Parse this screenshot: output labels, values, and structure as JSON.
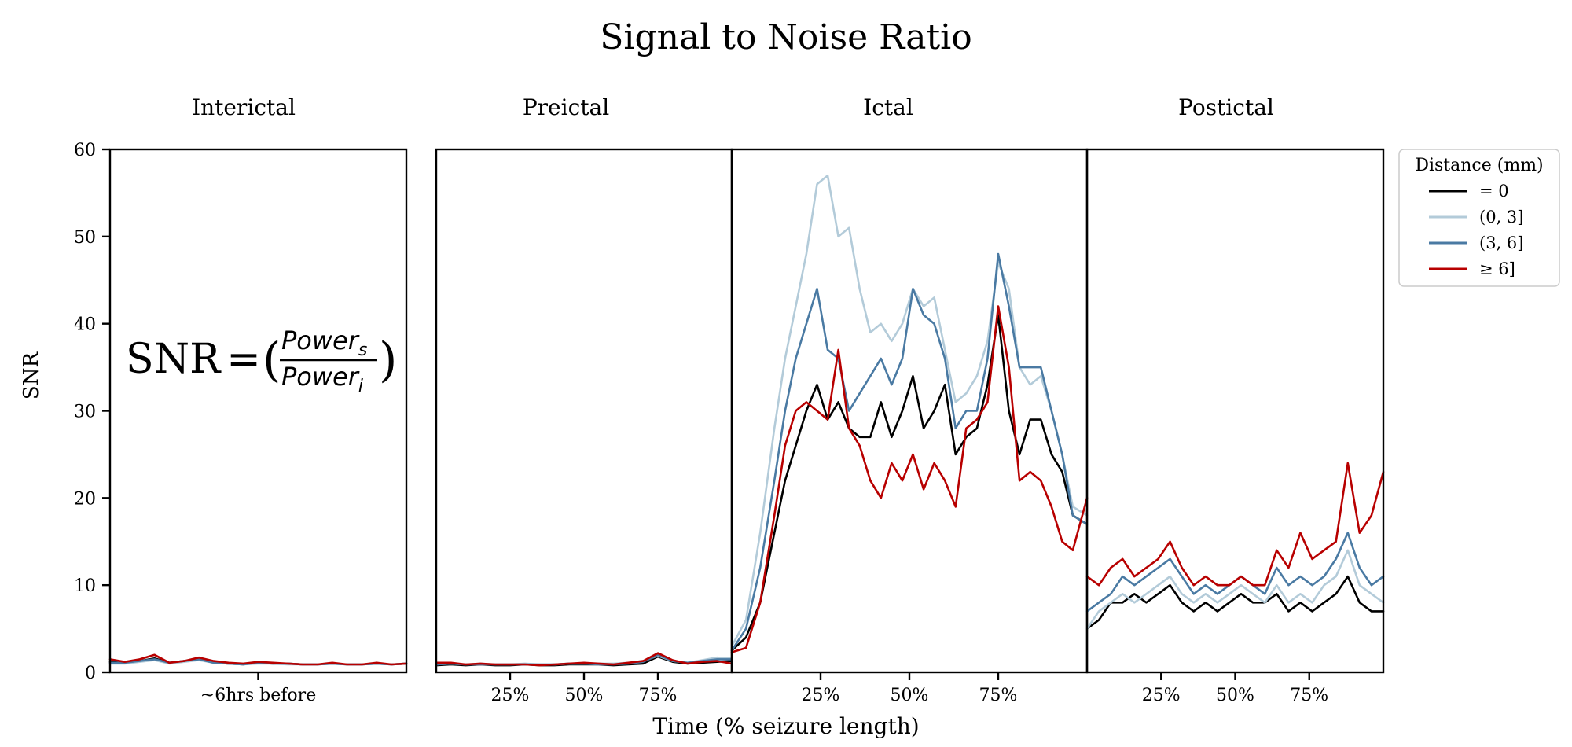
{
  "chart_data": {
    "type": "line",
    "title": "Signal to Noise Ratio",
    "ylabel": "SNR",
    "xlabel": "Time (% seizure length)",
    "ylim": [
      0,
      60
    ],
    "yticks": [
      0,
      10,
      20,
      30,
      40,
      50,
      60
    ],
    "grid": false,
    "legend": {
      "title": "Distance (mm)",
      "placement": "outside-right-top",
      "entries": [
        {
          "label": "= 0",
          "color": "#000000"
        },
        {
          "label": "(0, 3]",
          "color": "#b3cbd9"
        },
        {
          "label": "(3, 6]",
          "color": "#4a7aa3"
        },
        {
          "label": "≥ 6]",
          "color": "#b80000"
        }
      ]
    },
    "formula": {
      "lhs": "SNR",
      "eq": "=",
      "num": "Power",
      "num_sub": "s",
      "den": "Power",
      "den_sub": "i"
    },
    "panels": [
      {
        "title": "Interictal",
        "xlim": [
          0,
          100
        ],
        "xticks": [
          {
            "value": 50,
            "label": "~6hrs before"
          }
        ],
        "series": [
          {
            "name": "= 0",
            "x": [
              0,
              5,
              10,
              15,
              20,
              25,
              30,
              35,
              40,
              45,
              50,
              55,
              60,
              65,
              70,
              75,
              80,
              85,
              90,
              95,
              100
            ],
            "y": [
              1.2,
              1.1,
              1.3,
              1.6,
              1.1,
              1.3,
              1.5,
              1.1,
              1.0,
              0.9,
              1.1,
              1.0,
              1.0,
              0.9,
              0.9,
              1.0,
              0.9,
              0.9,
              1.0,
              0.9,
              1.0
            ]
          },
          {
            "name": "(0, 3]",
            "x": [
              0,
              5,
              10,
              15,
              20,
              25,
              30,
              35,
              40,
              45,
              50,
              55,
              60,
              65,
              70,
              75,
              80,
              85,
              90,
              95,
              100
            ],
            "y": [
              1.0,
              1.0,
              1.2,
              1.4,
              1.0,
              1.2,
              1.4,
              1.1,
              1.0,
              0.9,
              1.0,
              1.0,
              0.9,
              0.9,
              0.9,
              1.0,
              0.9,
              0.9,
              1.0,
              0.9,
              1.0
            ]
          },
          {
            "name": "(3, 6]",
            "x": [
              0,
              5,
              10,
              15,
              20,
              25,
              30,
              35,
              40,
              45,
              50,
              55,
              60,
              65,
              70,
              75,
              80,
              85,
              90,
              95,
              100
            ],
            "y": [
              1.1,
              1.1,
              1.3,
              1.5,
              1.1,
              1.3,
              1.5,
              1.1,
              1.0,
              0.9,
              1.1,
              1.0,
              1.0,
              0.9,
              0.9,
              1.0,
              0.9,
              0.9,
              1.0,
              0.9,
              1.0
            ]
          },
          {
            "name": "≥ 6]",
            "x": [
              0,
              5,
              10,
              15,
              20,
              25,
              30,
              35,
              40,
              45,
              50,
              55,
              60,
              65,
              70,
              75,
              80,
              85,
              90,
              95,
              100
            ],
            "y": [
              1.5,
              1.2,
              1.5,
              2.0,
              1.1,
              1.3,
              1.7,
              1.3,
              1.1,
              1.0,
              1.2,
              1.1,
              1.0,
              0.9,
              0.9,
              1.1,
              0.9,
              0.9,
              1.1,
              0.9,
              1.0
            ]
          }
        ]
      },
      {
        "title": "Preictal",
        "xlim": [
          0,
          100
        ],
        "xticks": [
          {
            "value": 25,
            "label": "25%"
          },
          {
            "value": 50,
            "label": "50%"
          },
          {
            "value": 75,
            "label": "75%"
          }
        ],
        "series": [
          {
            "name": "= 0",
            "x": [
              0,
              5,
              10,
              15,
              20,
              25,
              30,
              35,
              40,
              45,
              50,
              55,
              60,
              65,
              70,
              75,
              80,
              85,
              90,
              95,
              100
            ],
            "y": [
              0.8,
              0.9,
              0.8,
              0.9,
              0.8,
              0.8,
              0.9,
              0.8,
              0.8,
              0.9,
              0.9,
              0.9,
              0.8,
              0.9,
              1.0,
              1.8,
              1.2,
              1.0,
              1.1,
              1.2,
              1.3
            ]
          },
          {
            "name": "(0, 3]",
            "x": [
              0,
              5,
              10,
              15,
              20,
              25,
              30,
              35,
              40,
              45,
              50,
              55,
              60,
              65,
              70,
              75,
              80,
              85,
              90,
              95,
              100
            ],
            "y": [
              0.9,
              1.0,
              0.9,
              1.0,
              0.9,
              0.9,
              1.0,
              0.9,
              0.9,
              1.0,
              1.0,
              1.0,
              1.0,
              1.1,
              1.3,
              1.9,
              1.3,
              1.1,
              1.4,
              1.7,
              1.6
            ]
          },
          {
            "name": "(3, 6]",
            "x": [
              0,
              5,
              10,
              15,
              20,
              25,
              30,
              35,
              40,
              45,
              50,
              55,
              60,
              65,
              70,
              75,
              80,
              85,
              90,
              95,
              100
            ],
            "y": [
              0.9,
              1.0,
              0.9,
              0.9,
              0.9,
              0.9,
              0.9,
              0.9,
              0.9,
              1.0,
              1.0,
              0.9,
              0.9,
              1.0,
              1.2,
              2.0,
              1.3,
              1.1,
              1.3,
              1.5,
              1.5
            ]
          },
          {
            "name": "≥ 6]",
            "x": [
              0,
              5,
              10,
              15,
              20,
              25,
              30,
              35,
              40,
              45,
              50,
              55,
              60,
              65,
              70,
              75,
              80,
              85,
              90,
              95,
              100
            ],
            "y": [
              1.1,
              1.1,
              0.9,
              1.0,
              0.9,
              0.9,
              0.9,
              0.8,
              0.9,
              1.0,
              1.1,
              1.0,
              0.9,
              1.1,
              1.3,
              2.2,
              1.4,
              1.0,
              1.2,
              1.3,
              1.0
            ]
          }
        ]
      },
      {
        "title": "Ictal",
        "xlim": [
          0,
          100
        ],
        "xticks": [
          {
            "value": 25,
            "label": "25%"
          },
          {
            "value": 50,
            "label": "50%"
          },
          {
            "value": 75,
            "label": "75%"
          }
        ],
        "series": [
          {
            "name": "= 0",
            "x": [
              0,
              4,
              8,
              12,
              15,
              18,
              21,
              24,
              27,
              30,
              33,
              36,
              39,
              42,
              45,
              48,
              51,
              54,
              57,
              60,
              63,
              66,
              69,
              72,
              75,
              78,
              81,
              84,
              87,
              90,
              93,
              96,
              100
            ],
            "y": [
              2.5,
              4,
              8,
              16,
              22,
              26,
              30,
              33,
              29,
              31,
              28,
              27,
              27,
              31,
              27,
              30,
              34,
              28,
              30,
              33,
              25,
              27,
              28,
              33,
              41,
              30,
              25,
              29,
              29,
              25,
              23,
              18,
              17
            ]
          },
          {
            "name": "(0, 3]",
            "x": [
              0,
              4,
              8,
              12,
              15,
              18,
              21,
              24,
              27,
              30,
              33,
              36,
              39,
              42,
              45,
              48,
              51,
              54,
              57,
              60,
              63,
              66,
              69,
              72,
              75,
              78,
              81,
              84,
              87,
              90,
              93,
              96,
              100
            ],
            "y": [
              3,
              6,
              16,
              28,
              36,
              42,
              48,
              56,
              57,
              50,
              51,
              44,
              39,
              40,
              38,
              40,
              44,
              42,
              43,
              37,
              31,
              32,
              34,
              38,
              47,
              44,
              35,
              33,
              34,
              30,
              25,
              19,
              18
            ]
          },
          {
            "name": "(3, 6]",
            "x": [
              0,
              4,
              8,
              12,
              15,
              18,
              21,
              24,
              27,
              30,
              33,
              36,
              39,
              42,
              45,
              48,
              51,
              54,
              57,
              60,
              63,
              66,
              69,
              72,
              75,
              78,
              81,
              84,
              87,
              90,
              93,
              96,
              100
            ],
            "y": [
              2.5,
              5,
              12,
              22,
              30,
              36,
              40,
              44,
              37,
              36,
              30,
              32,
              34,
              36,
              33,
              36,
              44,
              41,
              40,
              36,
              28,
              30,
              30,
              36,
              48,
              42,
              35,
              35,
              35,
              30,
              25,
              18,
              17
            ]
          },
          {
            "name": "≥ 6]",
            "x": [
              0,
              4,
              8,
              12,
              15,
              18,
              21,
              24,
              27,
              30,
              33,
              36,
              39,
              42,
              45,
              48,
              51,
              54,
              57,
              60,
              63,
              66,
              69,
              72,
              75,
              78,
              81,
              84,
              87,
              90,
              93,
              96,
              100
            ],
            "y": [
              2.3,
              2.8,
              8,
              18,
              26,
              30,
              31,
              30,
              29,
              37,
              28,
              26,
              22,
              20,
              24,
              22,
              25,
              21,
              24,
              22,
              19,
              28,
              29,
              31,
              42,
              35,
              22,
              23,
              22,
              19,
              15,
              14,
              20
            ]
          }
        ]
      },
      {
        "title": "Postictal",
        "xlim": [
          0,
          100
        ],
        "xticks": [
          {
            "value": 25,
            "label": "25%"
          },
          {
            "value": 50,
            "label": "50%"
          },
          {
            "value": 75,
            "label": "75%"
          }
        ],
        "series": [
          {
            "name": "= 0",
            "x": [
              0,
              4,
              8,
              12,
              16,
              20,
              24,
              28,
              32,
              36,
              40,
              44,
              48,
              52,
              56,
              60,
              64,
              68,
              72,
              76,
              80,
              84,
              88,
              92,
              96,
              100
            ],
            "y": [
              5,
              6,
              8,
              8,
              9,
              8,
              9,
              10,
              8,
              7,
              8,
              7,
              8,
              9,
              8,
              8,
              9,
              7,
              8,
              7,
              8,
              9,
              11,
              8,
              7,
              7
            ]
          },
          {
            "name": "(0, 3]",
            "x": [
              0,
              4,
              8,
              12,
              16,
              20,
              24,
              28,
              32,
              36,
              40,
              44,
              48,
              52,
              56,
              60,
              64,
              68,
              72,
              76,
              80,
              84,
              88,
              92,
              96,
              100
            ],
            "y": [
              5,
              7,
              8,
              9,
              8,
              9,
              10,
              11,
              9,
              8,
              9,
              8,
              9,
              10,
              9,
              8,
              10,
              8,
              9,
              8,
              10,
              11,
              14,
              10,
              9,
              8
            ]
          },
          {
            "name": "(3, 6]",
            "x": [
              0,
              4,
              8,
              12,
              16,
              20,
              24,
              28,
              32,
              36,
              40,
              44,
              48,
              52,
              56,
              60,
              64,
              68,
              72,
              76,
              80,
              84,
              88,
              92,
              96,
              100
            ],
            "y": [
              7,
              8,
              9,
              11,
              10,
              11,
              12,
              13,
              11,
              9,
              10,
              9,
              10,
              11,
              10,
              9,
              12,
              10,
              11,
              10,
              11,
              13,
              16,
              12,
              10,
              11
            ]
          },
          {
            "name": "≥ 6]",
            "x": [
              0,
              4,
              8,
              12,
              16,
              20,
              24,
              28,
              32,
              36,
              40,
              44,
              48,
              52,
              56,
              60,
              64,
              68,
              72,
              76,
              80,
              84,
              88,
              92,
              96,
              100
            ],
            "y": [
              11,
              10,
              12,
              13,
              11,
              12,
              13,
              15,
              12,
              10,
              11,
              10,
              10,
              11,
              10,
              10,
              14,
              12,
              16,
              13,
              14,
              15,
              24,
              16,
              18,
              23
            ]
          }
        ]
      }
    ]
  }
}
